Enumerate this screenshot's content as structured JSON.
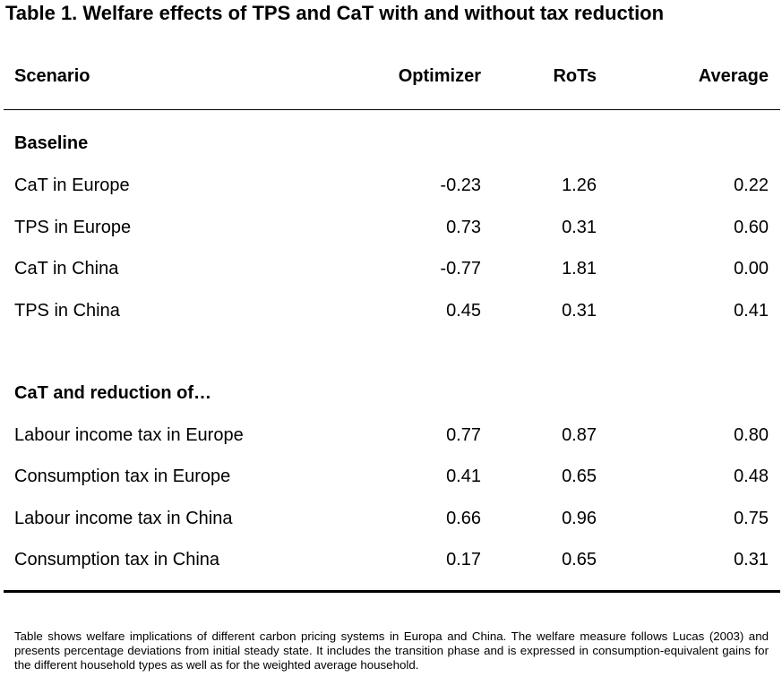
{
  "title": "Table 1. Welfare effects of TPS and CaT with and without tax reduction",
  "header": {
    "scenario": "Scenario",
    "optimizer": "Optimizer",
    "rots": "RoTs",
    "average": "Average"
  },
  "sections": [
    {
      "label": "Baseline",
      "rows": [
        {
          "scenario": "CaT in Europe",
          "optimizer": "-0.23",
          "rots": "1.26",
          "average": "0.22"
        },
        {
          "scenario": "TPS in Europe",
          "optimizer": "0.73",
          "rots": "0.31",
          "average": "0.60"
        },
        {
          "scenario": "CaT in China",
          "optimizer": "-0.77",
          "rots": "1.81",
          "average": "0.00"
        },
        {
          "scenario": "TPS in China",
          "optimizer": "0.45",
          "rots": "0.31",
          "average": "0.41"
        }
      ]
    },
    {
      "label": "CaT and reduction of…",
      "rows": [
        {
          "scenario": "Labour income tax in Europe",
          "optimizer": "0.77",
          "rots": "0.87",
          "average": "0.80"
        },
        {
          "scenario": "Consumption tax in Europe",
          "optimizer": "0.41",
          "rots": "0.65",
          "average": "0.48"
        },
        {
          "scenario": "Labour income tax in China",
          "optimizer": "0.66",
          "rots": "0.96",
          "average": "0.75"
        },
        {
          "scenario": "Consumption tax in China",
          "optimizer": "0.17",
          "rots": "0.65",
          "average": "0.31"
        }
      ]
    }
  ],
  "note": "Table shows welfare implications of different carbon pricing systems in Europa and China. The welfare measure follows Lucas (2003) and presents percentage deviations from initial steady state. It includes the transition phase and is expressed in consumption-equivalent gains for the different household types as well as for the weighted average household."
}
